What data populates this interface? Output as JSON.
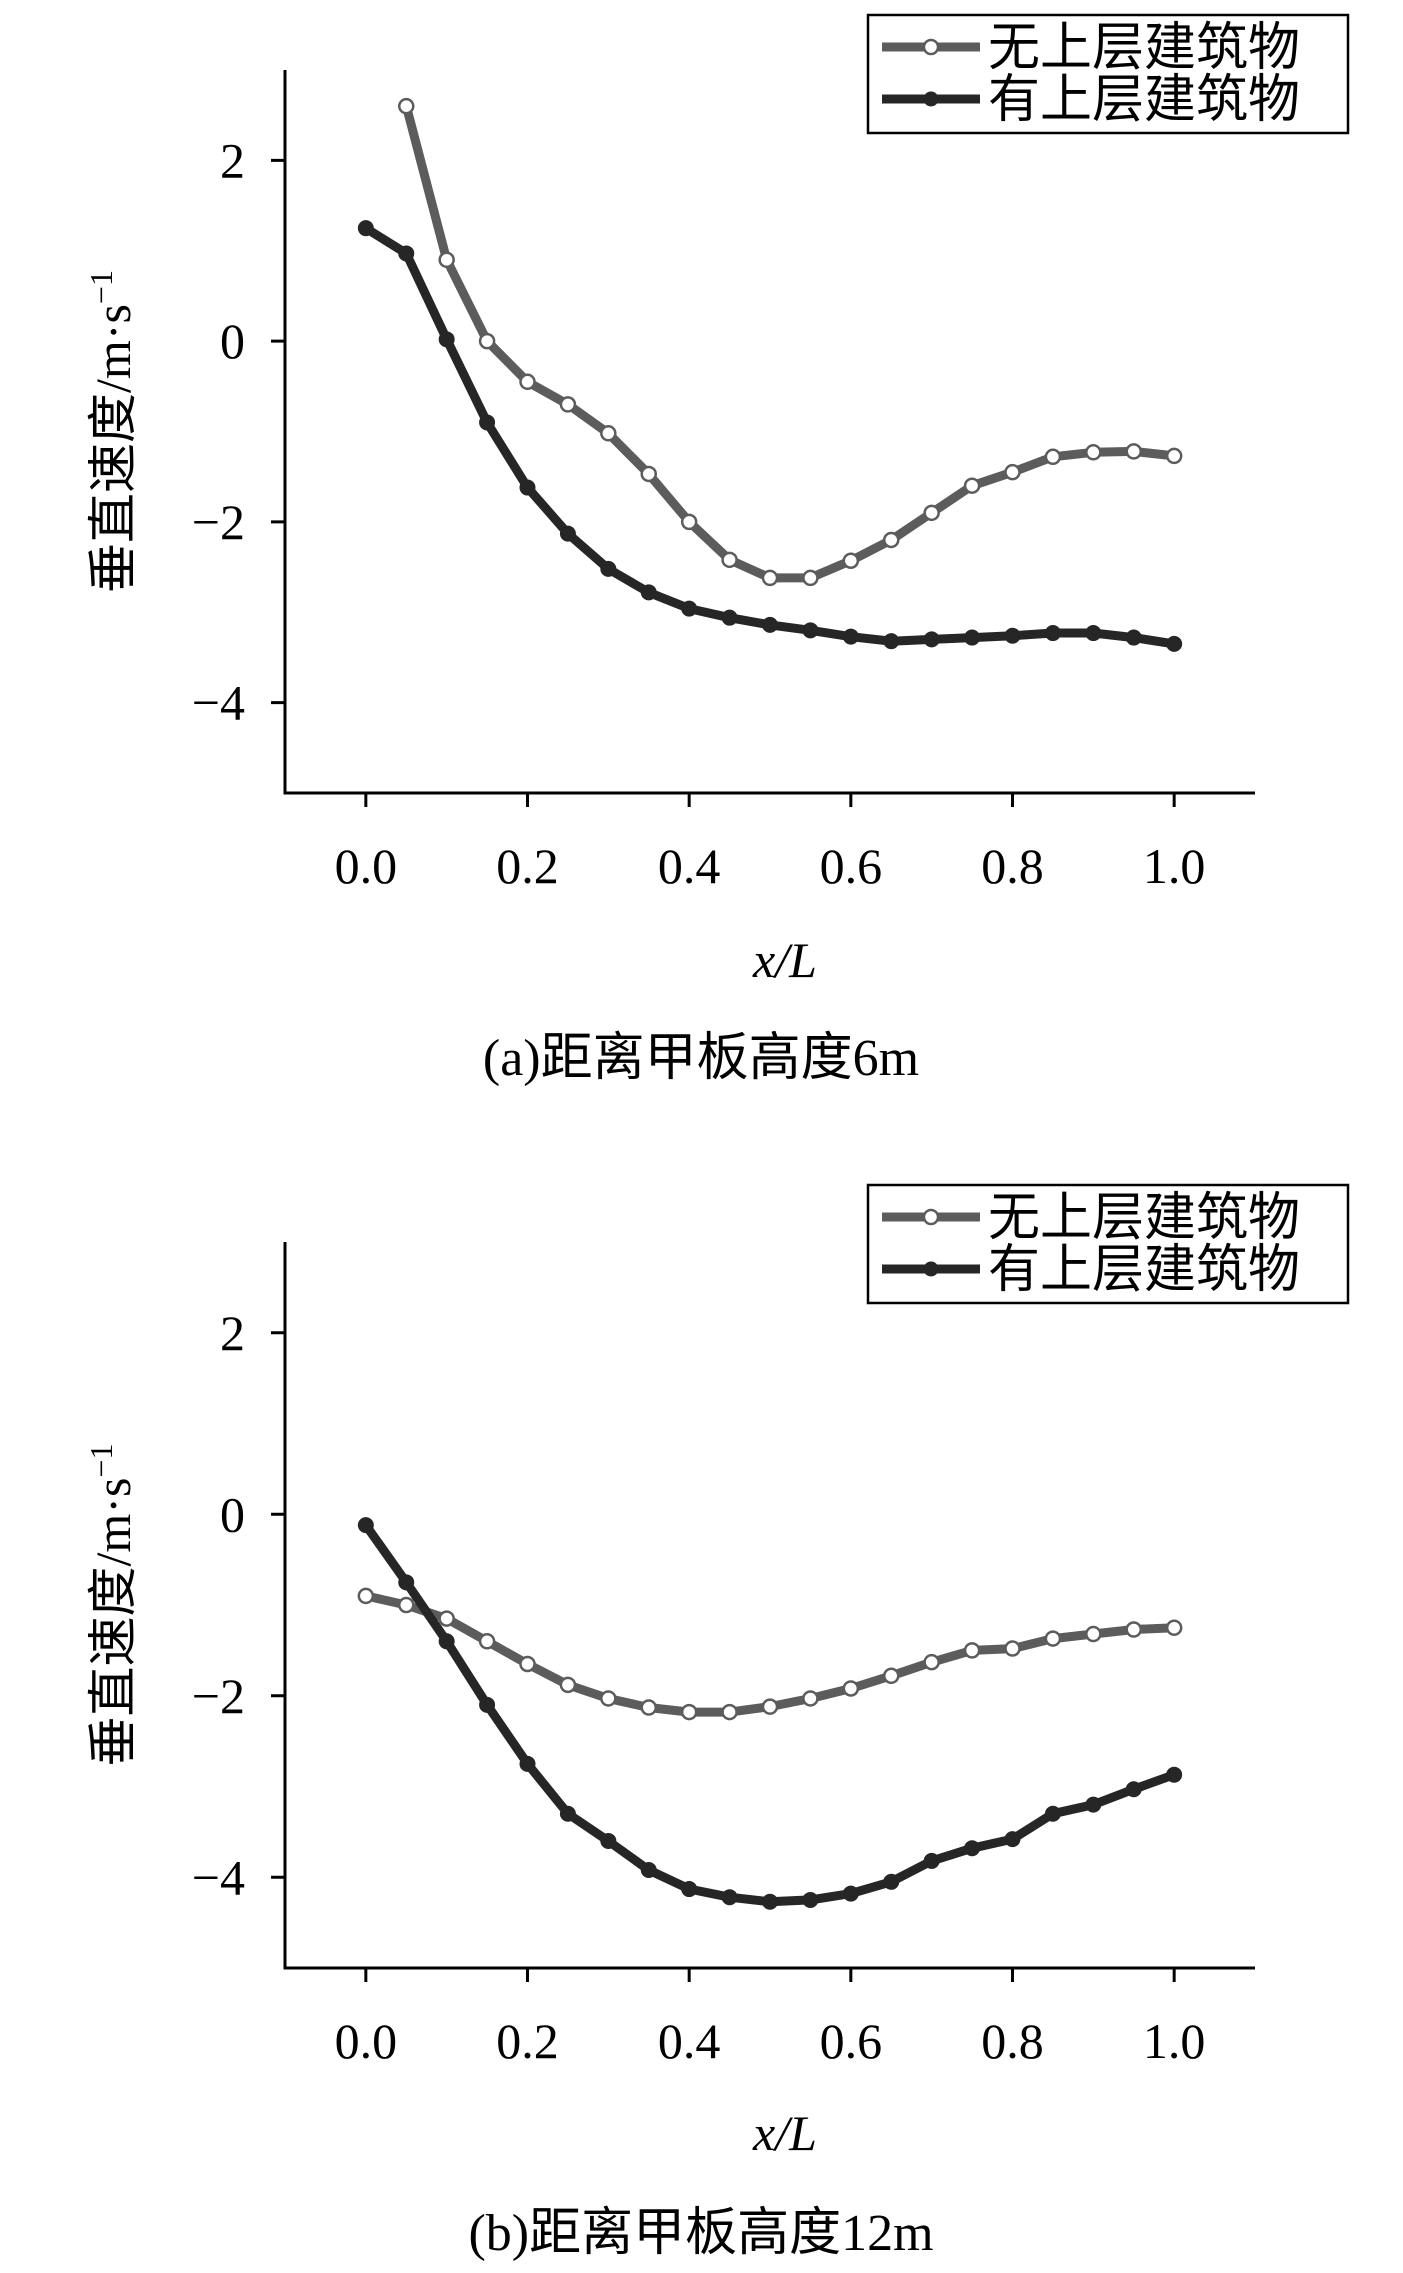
{
  "colors": {
    "series_open": "#5c5c5c",
    "series_filled": "#262626",
    "axis": "#000000"
  },
  "chart_data": [
    {
      "type": "line",
      "caption": "(a)距离甲板高度6m",
      "xlabel": "x/L",
      "ylabel": "垂直速度/m·s",
      "ylabel_sup": "−1",
      "xlim": [
        -0.1,
        1.1
      ],
      "ylim": [
        -5,
        3
      ],
      "xticks": [
        0.0,
        0.2,
        0.4,
        0.6,
        0.8,
        1.0
      ],
      "xtick_labels": [
        "0.0",
        "0.2",
        "0.4",
        "0.6",
        "0.8",
        "1.0"
      ],
      "yticks": [
        2,
        0,
        -2,
        -4
      ],
      "ytick_labels": [
        "2",
        "0",
        "−2",
        "−4"
      ],
      "legend_position": "top-right",
      "grid": false,
      "series": [
        {
          "name": "无上层建筑物",
          "marker": "open-circle",
          "x": [
            0.05,
            0.1,
            0.15,
            0.2,
            0.25,
            0.3,
            0.35,
            0.4,
            0.45,
            0.5,
            0.55,
            0.6,
            0.65,
            0.7,
            0.75,
            0.8,
            0.85,
            0.9,
            0.95,
            1.0
          ],
          "y": [
            2.6,
            0.9,
            0.0,
            -0.45,
            -0.7,
            -1.02,
            -1.47,
            -2.0,
            -2.42,
            -2.62,
            -2.62,
            -2.43,
            -2.2,
            -1.9,
            -1.6,
            -1.45,
            -1.28,
            -1.23,
            -1.22,
            -1.27
          ]
        },
        {
          "name": "有上层建筑物",
          "marker": "filled-circle",
          "x": [
            0.0,
            0.05,
            0.1,
            0.15,
            0.2,
            0.25,
            0.3,
            0.35,
            0.4,
            0.45,
            0.5,
            0.55,
            0.6,
            0.65,
            0.7,
            0.75,
            0.8,
            0.85,
            0.9,
            0.95,
            1.0
          ],
          "y": [
            1.25,
            0.97,
            0.02,
            -0.9,
            -1.62,
            -2.13,
            -2.52,
            -2.78,
            -2.96,
            -3.06,
            -3.14,
            -3.2,
            -3.27,
            -3.32,
            -3.3,
            -3.28,
            -3.26,
            -3.23,
            -3.23,
            -3.28,
            -3.35
          ]
        }
      ]
    },
    {
      "type": "line",
      "caption": "(b)距离甲板高度12m",
      "xlabel": "x/L",
      "ylabel": "垂直速度/m·s",
      "ylabel_sup": "−1",
      "xlim": [
        -0.1,
        1.1
      ],
      "ylim": [
        -5,
        3
      ],
      "xticks": [
        0.0,
        0.2,
        0.4,
        0.6,
        0.8,
        1.0
      ],
      "xtick_labels": [
        "0.0",
        "0.2",
        "0.4",
        "0.6",
        "0.8",
        "1.0"
      ],
      "yticks": [
        2,
        0,
        -2,
        -4
      ],
      "ytick_labels": [
        "2",
        "0",
        "−2",
        "−4"
      ],
      "legend_position": "top-right",
      "grid": false,
      "series": [
        {
          "name": "无上层建筑物",
          "marker": "open-circle",
          "x": [
            0.0,
            0.05,
            0.1,
            0.15,
            0.2,
            0.25,
            0.3,
            0.35,
            0.4,
            0.45,
            0.5,
            0.55,
            0.6,
            0.65,
            0.7,
            0.75,
            0.8,
            0.85,
            0.9,
            0.95,
            1.0
          ],
          "y": [
            -0.9,
            -1.0,
            -1.15,
            -1.4,
            -1.65,
            -1.88,
            -2.03,
            -2.13,
            -2.18,
            -2.18,
            -2.12,
            -2.03,
            -1.92,
            -1.78,
            -1.63,
            -1.5,
            -1.48,
            -1.37,
            -1.32,
            -1.27,
            -1.25
          ]
        },
        {
          "name": "有上层建筑物",
          "marker": "filled-circle",
          "x": [
            0.0,
            0.05,
            0.1,
            0.15,
            0.2,
            0.25,
            0.3,
            0.35,
            0.4,
            0.45,
            0.5,
            0.55,
            0.6,
            0.65,
            0.7,
            0.75,
            0.8,
            0.85,
            0.9,
            0.95,
            1.0
          ],
          "y": [
            -0.12,
            -0.75,
            -1.4,
            -2.1,
            -2.75,
            -3.3,
            -3.6,
            -3.92,
            -4.13,
            -4.22,
            -4.27,
            -4.25,
            -4.18,
            -4.05,
            -3.82,
            -3.68,
            -3.58,
            -3.3,
            -3.2,
            -3.03,
            -2.87
          ]
        }
      ]
    }
  ]
}
